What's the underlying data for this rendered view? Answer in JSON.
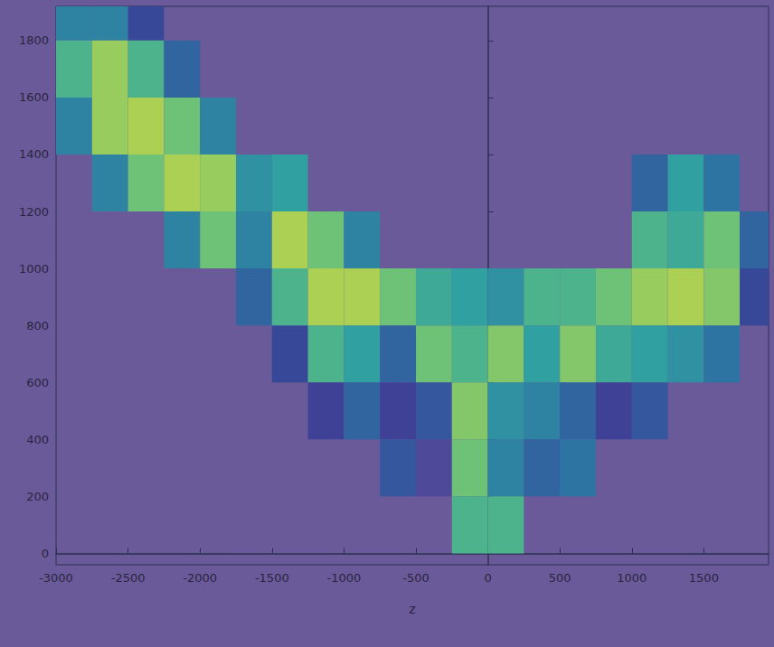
{
  "chart_data": {
    "type": "heatmap",
    "x_label": "z",
    "xlim": [
      -3000,
      1950
    ],
    "xticks": [
      -3000,
      -2500,
      -2000,
      -1500,
      -1000,
      -500,
      0,
      500,
      1000,
      1500
    ],
    "ylim": [
      -40,
      1920
    ],
    "yticks": [
      0,
      200,
      400,
      600,
      800,
      1000,
      1200,
      1400,
      1600,
      1800
    ],
    "grid": false,
    "tick_labels": true,
    "cell_width": 250,
    "cell_height": 200,
    "zlim": [
      0,
      1
    ],
    "cells": [
      [
        -2875,
        1900,
        0.4
      ],
      [
        -2625,
        1900,
        0.4
      ],
      [
        -2375,
        1900,
        0.2
      ],
      [
        -2875,
        1700,
        0.6
      ],
      [
        -2625,
        1700,
        0.8
      ],
      [
        -2375,
        1700,
        0.6
      ],
      [
        -2125,
        1700,
        0.3
      ],
      [
        -2875,
        1500,
        0.4
      ],
      [
        -2625,
        1500,
        0.8
      ],
      [
        -2375,
        1500,
        0.85
      ],
      [
        -2125,
        1500,
        0.7
      ],
      [
        -1875,
        1500,
        0.4
      ],
      [
        -2625,
        1300,
        0.4
      ],
      [
        -2375,
        1300,
        0.7
      ],
      [
        -2125,
        1300,
        0.85
      ],
      [
        -1875,
        1300,
        0.8
      ],
      [
        -1625,
        1300,
        0.45
      ],
      [
        -1375,
        1300,
        0.5
      ],
      [
        1125,
        1300,
        0.3
      ],
      [
        1375,
        1300,
        0.5
      ],
      [
        1625,
        1300,
        0.35
      ],
      [
        -2125,
        1100,
        0.4
      ],
      [
        -1875,
        1100,
        0.7
      ],
      [
        -1625,
        1100,
        0.4
      ],
      [
        -1375,
        1100,
        0.85
      ],
      [
        -1125,
        1100,
        0.7
      ],
      [
        -875,
        1100,
        0.4
      ],
      [
        1125,
        1100,
        0.6
      ],
      [
        1375,
        1100,
        0.55
      ],
      [
        1625,
        1100,
        0.7
      ],
      [
        1875,
        1100,
        0.3
      ],
      [
        -1625,
        900,
        0.3
      ],
      [
        -1375,
        900,
        0.6
      ],
      [
        -1125,
        900,
        0.85
      ],
      [
        -875,
        900,
        0.85
      ],
      [
        -625,
        900,
        0.7
      ],
      [
        -375,
        900,
        0.55
      ],
      [
        -125,
        900,
        0.5
      ],
      [
        125,
        900,
        0.45
      ],
      [
        375,
        900,
        0.6
      ],
      [
        625,
        900,
        0.6
      ],
      [
        875,
        900,
        0.7
      ],
      [
        1125,
        900,
        0.8
      ],
      [
        1375,
        900,
        0.85
      ],
      [
        1625,
        900,
        0.75
      ],
      [
        1875,
        900,
        0.2
      ],
      [
        -1375,
        700,
        0.2
      ],
      [
        -1125,
        700,
        0.6
      ],
      [
        -875,
        700,
        0.5
      ],
      [
        -625,
        700,
        0.3
      ],
      [
        -375,
        700,
        0.7
      ],
      [
        -125,
        700,
        0.6
      ],
      [
        125,
        700,
        0.75
      ],
      [
        375,
        700,
        0.5
      ],
      [
        625,
        700,
        0.75
      ],
      [
        875,
        700,
        0.55
      ],
      [
        1125,
        700,
        0.5
      ],
      [
        1375,
        700,
        0.45
      ],
      [
        1625,
        700,
        0.35
      ],
      [
        -1125,
        500,
        0.15
      ],
      [
        -875,
        500,
        0.3
      ],
      [
        -625,
        500,
        0.15
      ],
      [
        -375,
        500,
        0.25
      ],
      [
        -125,
        500,
        0.75
      ],
      [
        125,
        500,
        0.45
      ],
      [
        375,
        500,
        0.4
      ],
      [
        625,
        500,
        0.3
      ],
      [
        875,
        500,
        0.15
      ],
      [
        1125,
        500,
        0.25
      ],
      [
        -625,
        300,
        0.25
      ],
      [
        -375,
        300,
        0.1
      ],
      [
        -125,
        300,
        0.7
      ],
      [
        125,
        300,
        0.4
      ],
      [
        375,
        300,
        0.3
      ],
      [
        625,
        300,
        0.35
      ],
      [
        -125,
        100,
        0.6
      ],
      [
        125,
        100,
        0.6
      ]
    ]
  }
}
